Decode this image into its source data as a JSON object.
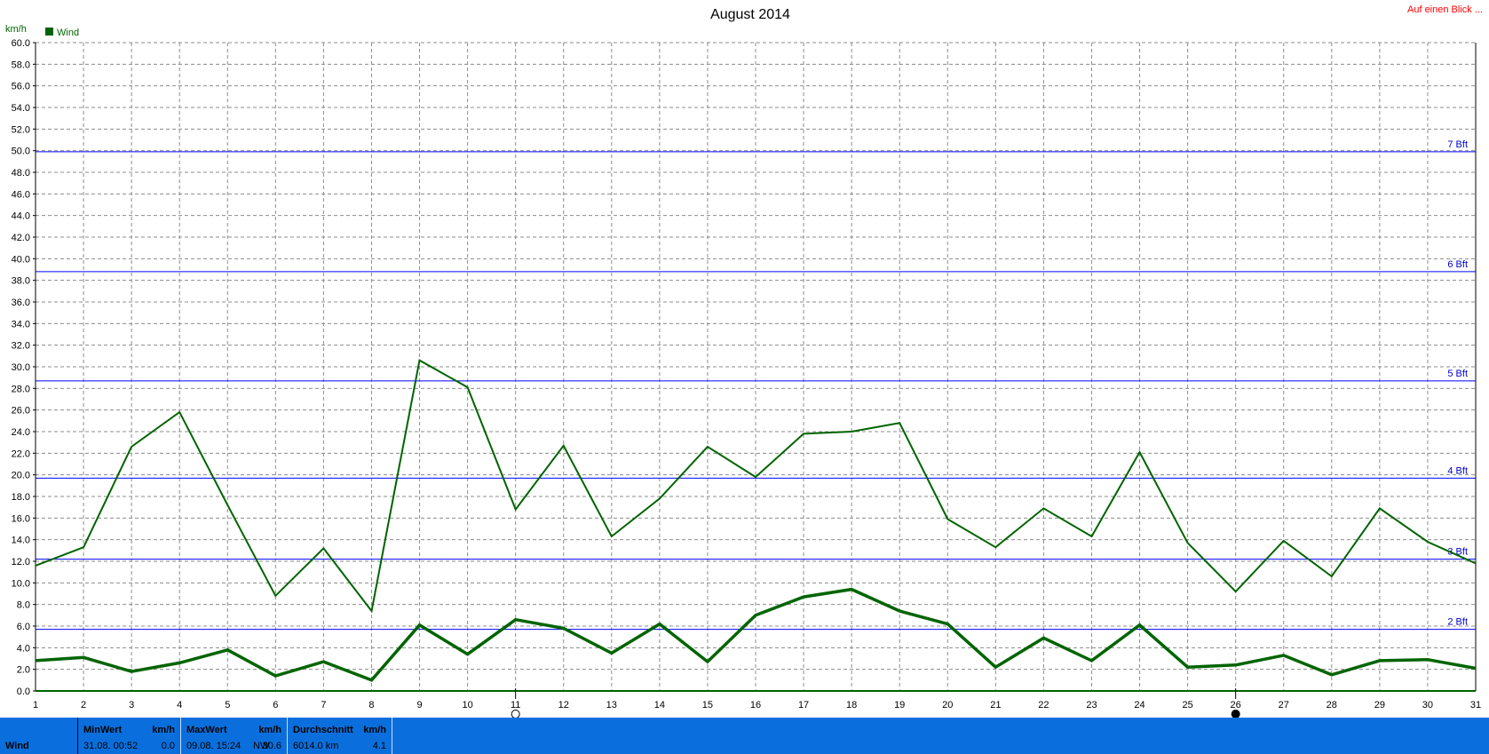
{
  "link_text": "Auf einen Blick ...",
  "chart_data": {
    "type": "line",
    "title": "August 2014",
    "ylabel": "km/h",
    "legend": {
      "label": "Wind",
      "color": "#006400",
      "position": "top-left"
    },
    "ylim": [
      0,
      60
    ],
    "ytick_step": 2,
    "x": [
      1,
      2,
      3,
      4,
      5,
      6,
      7,
      8,
      9,
      10,
      11,
      12,
      13,
      14,
      15,
      16,
      17,
      18,
      19,
      20,
      21,
      22,
      23,
      24,
      25,
      26,
      27,
      28,
      29,
      30,
      31
    ],
    "series": [
      {
        "values": [
          11.6,
          13.3,
          22.6,
          25.8,
          17.2,
          8.8,
          13.2,
          7.4,
          30.6,
          28.1,
          16.8,
          22.7,
          14.3,
          17.8,
          22.6,
          19.8,
          23.8,
          24.0,
          24.8,
          15.9,
          13.3,
          16.9,
          14.3,
          22.1,
          13.7,
          9.2,
          13.9,
          10.6,
          16.9,
          13.8,
          11.8
        ],
        "color": "#006400",
        "width": 2
      },
      {
        "values": [
          2.8,
          3.1,
          1.8,
          2.6,
          3.8,
          1.4,
          2.7,
          1.0,
          6.1,
          3.4,
          6.6,
          5.8,
          3.5,
          6.2,
          2.7,
          7.0,
          8.7,
          9.4,
          7.4,
          6.2,
          2.2,
          4.9,
          2.8,
          6.1,
          2.2,
          2.4,
          3.3,
          1.5,
          2.8,
          2.9,
          2.1
        ],
        "color": "#006400",
        "width": 3.5
      }
    ],
    "reference_lines": [
      {
        "label": "2 Bft",
        "value": 5.7
      },
      {
        "label": "3 Bft",
        "value": 12.2
      },
      {
        "label": "4 Bft",
        "value": 19.7
      },
      {
        "label": "5 Bft",
        "value": 28.7
      },
      {
        "label": "6 Bft",
        "value": 38.8
      },
      {
        "label": "7 Bft",
        "value": 49.9
      }
    ],
    "reference_color": "#0000ff",
    "moon_markers": [
      {
        "day": 11,
        "phase": "full"
      },
      {
        "day": 26,
        "phase": "new"
      }
    ],
    "grid": true
  },
  "footer": {
    "row_label": "Wind",
    "min": {
      "header": "MinWert",
      "unit": "km/h",
      "time": "31.08.  00:52",
      "value": "0.0"
    },
    "max": {
      "header": "MaxWert",
      "unit": "km/h",
      "time": "09.08.  15:24",
      "direction": "NW",
      "value": "30.6"
    },
    "avg": {
      "header": "Durchschnitt",
      "unit": "km/h",
      "distance": "6014.0 km",
      "value": "4.1"
    }
  }
}
